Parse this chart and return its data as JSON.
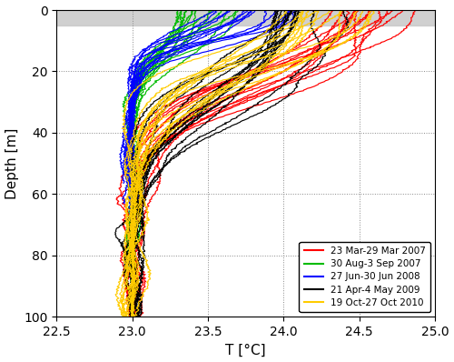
{
  "xlim": [
    22.5,
    25.0
  ],
  "ylim": [
    100,
    0
  ],
  "xlabel": "T [°C]",
  "ylabel": "Depth [m]",
  "grey_shade_depth": 5,
  "legend_entries": [
    {
      "label": "23 Mar-29 Mar 2007",
      "color": "#ff0000"
    },
    {
      "label": "30 Aug-3 Sep 2007",
      "color": "#00bb00"
    },
    {
      "label": "27 Jun-30 Jun 2008",
      "color": "#0000ff"
    },
    {
      "label": "21 Apr-4 May 2009",
      "color": "#000000"
    },
    {
      "label": "19 Oct-27 Oct 2010",
      "color": "#ffcc00"
    }
  ],
  "xticks": [
    22.5,
    23.0,
    23.5,
    24.0,
    24.5,
    25.0
  ],
  "yticks": [
    0,
    20,
    40,
    60,
    80,
    100
  ],
  "figsize": [
    5.0,
    3.98
  ],
  "dpi": 100,
  "n_profiles": 14
}
